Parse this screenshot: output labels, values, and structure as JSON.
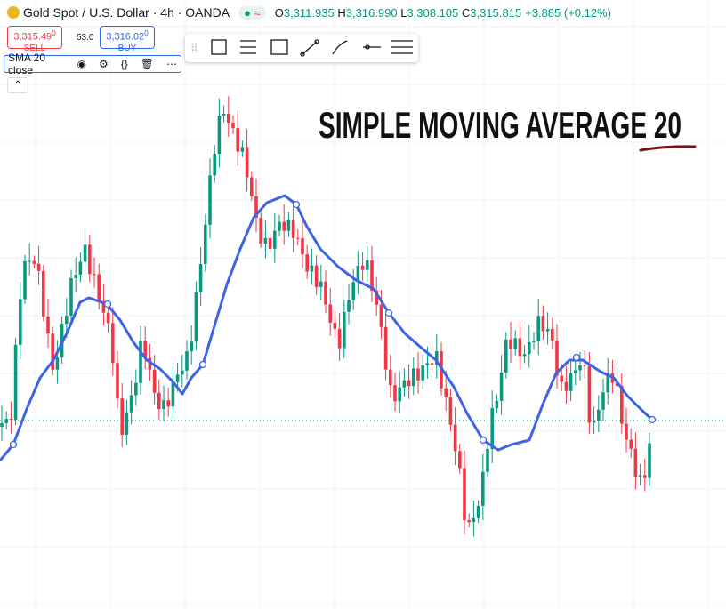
{
  "header": {
    "symbol": "Gold Spot",
    "separator": "/",
    "details": "U.S. Dollar · 4h · OANDA",
    "badge": "≈",
    "ohlc": [
      {
        "label": "O",
        "value": "3,311.935"
      },
      {
        "label": "H",
        "value": "3,316.990"
      },
      {
        "label": "L",
        "value": "3,308.105"
      },
      {
        "label": "C",
        "value": "3,315.815"
      }
    ],
    "change": "+3.885 (+0.12%)"
  },
  "trade": {
    "sell_price": "3,315.49",
    "sell_fraction": "0",
    "sell_label": "SELL",
    "spread": "53.0",
    "buy_price": "3,316.02",
    "buy_fraction": "0",
    "buy_label": "BUY"
  },
  "indicator": {
    "label": "SMA 20 close"
  },
  "annotation": {
    "text": "SIMPLE MOVING AVERAGE 20"
  }
}
